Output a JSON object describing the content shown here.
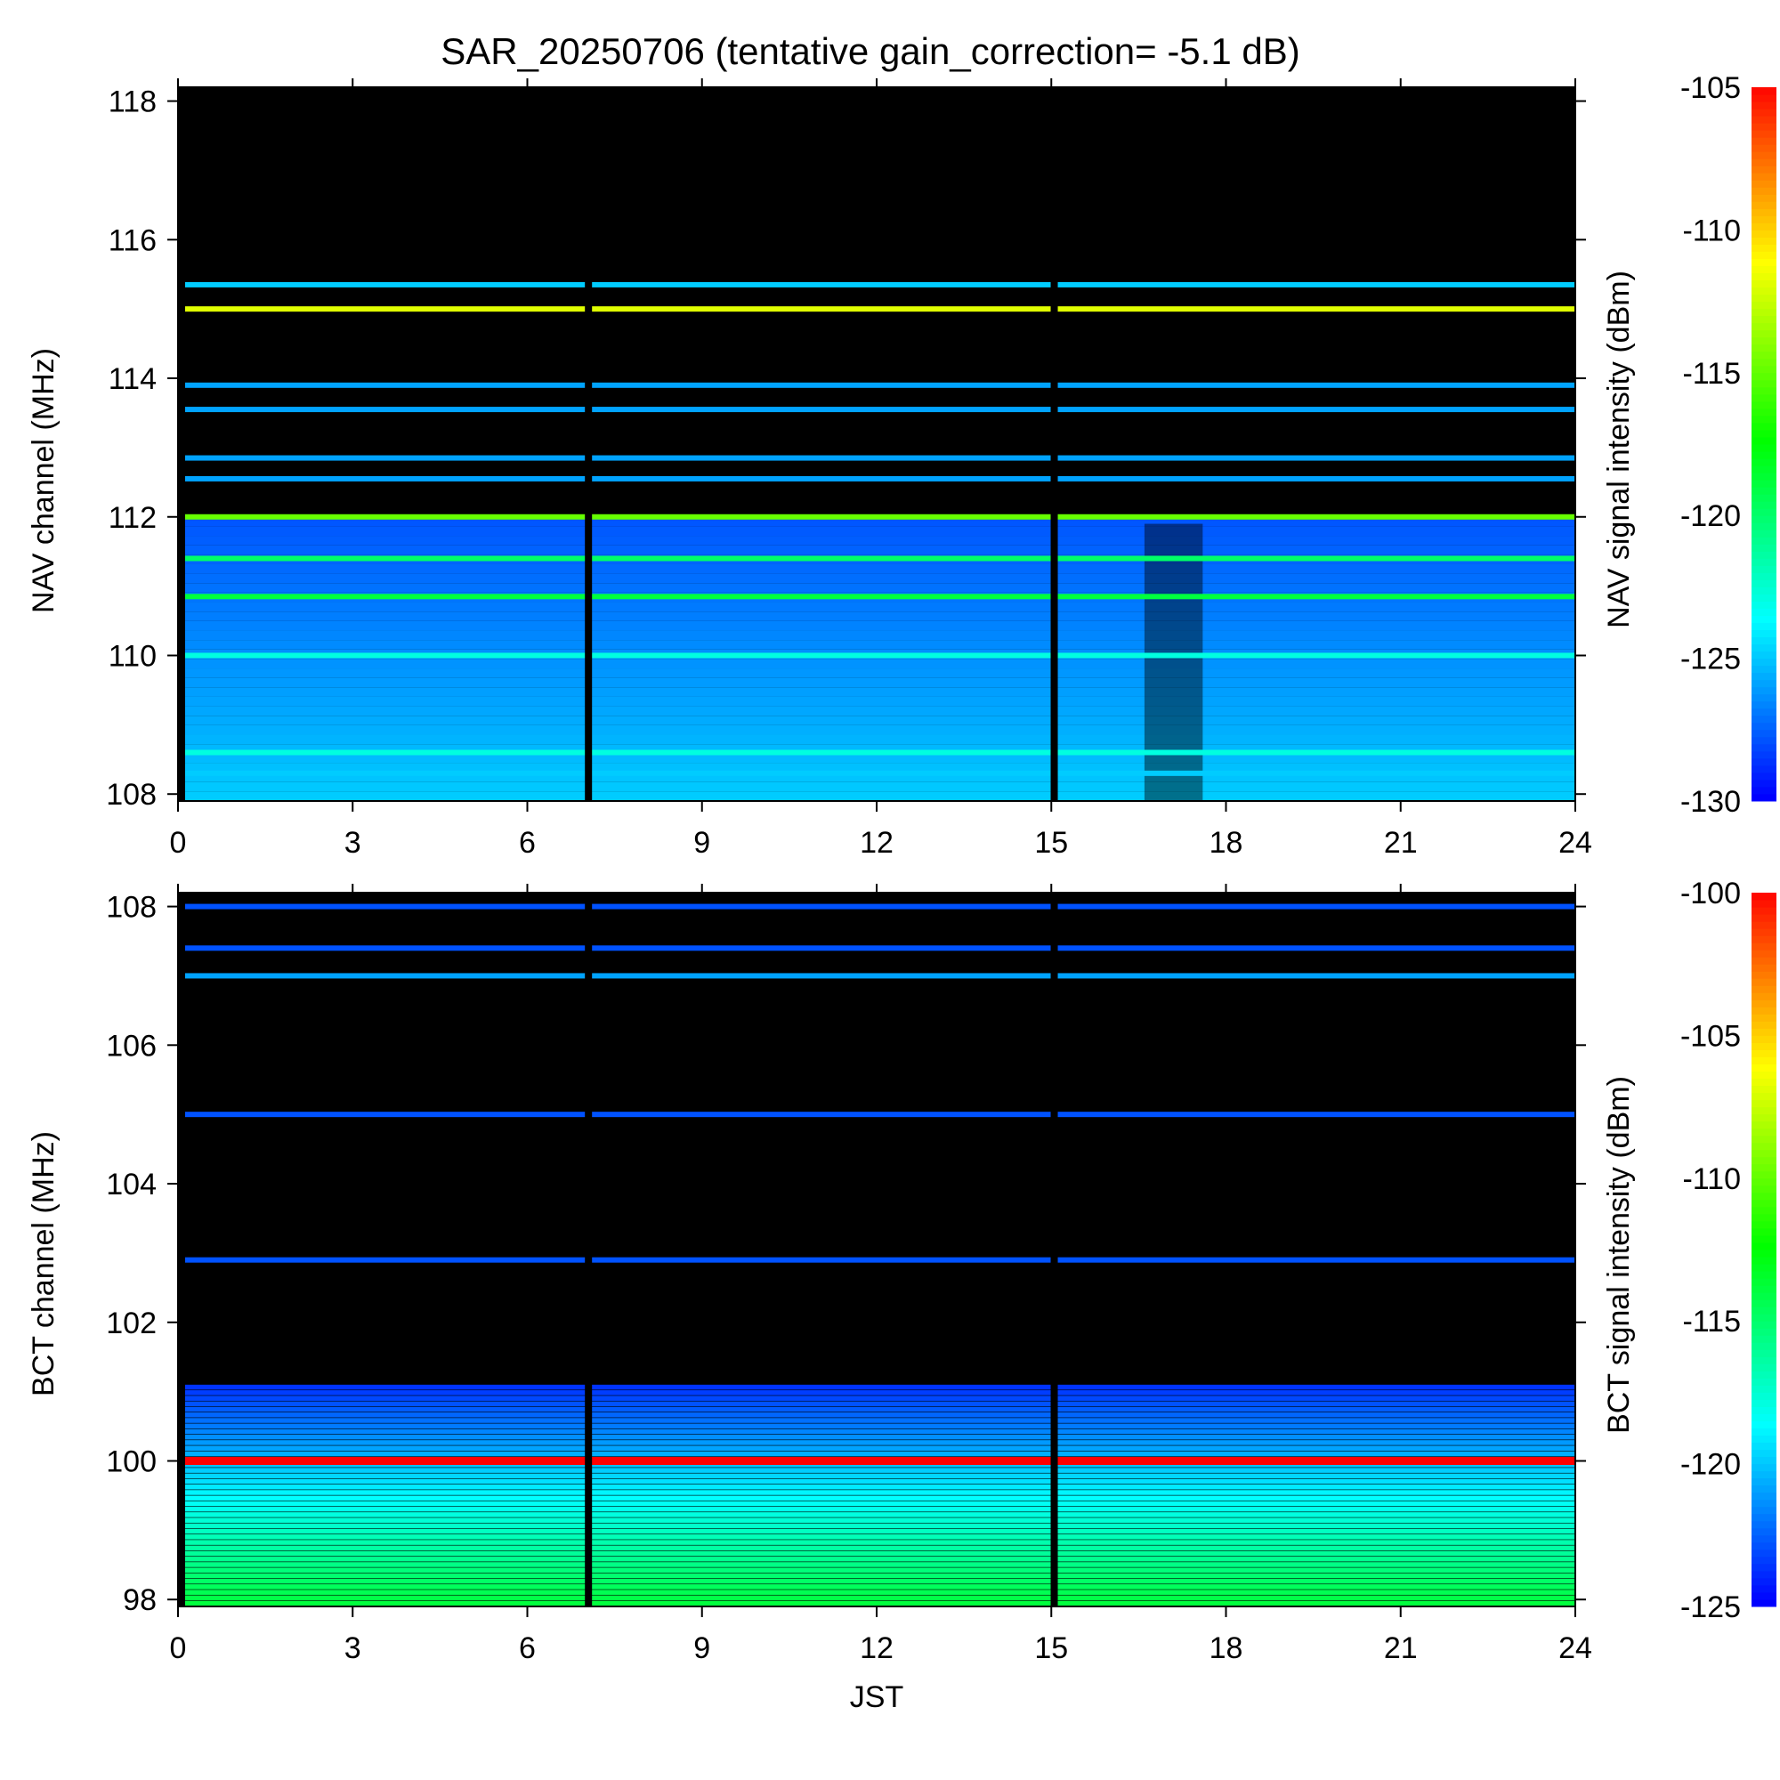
{
  "title": "SAR_20250706 (tentative gain_correction= -5.1 dB)",
  "chart_data": [
    {
      "type": "heatmap",
      "panel": "top",
      "ylabel": "NAV channel (MHz)",
      "colorbar_label": "NAV signal intensity (dBm)",
      "x_ticks": [
        "0",
        "3",
        "6",
        "9",
        "12",
        "15",
        "18",
        "21",
        "24"
      ],
      "y_ticks": [
        "108",
        "110",
        "112",
        "114",
        "116",
        "118"
      ],
      "colorbar_ticks": [
        "-130",
        "-125",
        "-120",
        "-115",
        "-110",
        "-105"
      ],
      "xlim": [
        0,
        24
      ],
      "ylim": [
        107.9,
        118.2
      ],
      "clim": [
        -130,
        -105
      ],
      "colormap": [
        "#0000ff",
        "#00ffff",
        "#00ff00",
        "#ffff00",
        "#ff0000"
      ],
      "data_gaps_jst": [
        7.05,
        15.05
      ],
      "interference_block_jst": [
        16.6,
        17.6
      ],
      "strong_channels": [
        {
          "freq": 115.0,
          "level": -112
        },
        {
          "freq": 112.0,
          "level": -115
        },
        {
          "freq": 111.4,
          "level": -120
        },
        {
          "freq": 110.85,
          "level": -119
        },
        {
          "freq": 110.0,
          "level": -123
        },
        {
          "freq": 108.6,
          "level": -123
        },
        {
          "freq": 108.3,
          "level": -125
        },
        {
          "freq": 115.35,
          "level": -125
        },
        {
          "freq": 113.9,
          "level": -126
        },
        {
          "freq": 113.55,
          "level": -126
        },
        {
          "freq": 112.85,
          "level": -126
        },
        {
          "freq": 112.55,
          "level": -126
        }
      ]
    },
    {
      "type": "heatmap",
      "panel": "bottom",
      "xlabel": "JST",
      "ylabel": "BCT channel (MHz)",
      "colorbar_label": "BCT signal intensity (dBm)",
      "x_ticks": [
        "0",
        "3",
        "6",
        "9",
        "12",
        "15",
        "18",
        "21",
        "24"
      ],
      "y_ticks": [
        "98",
        "100",
        "102",
        "104",
        "106",
        "108"
      ],
      "colorbar_ticks": [
        "-125",
        "-120",
        "-115",
        "-110",
        "-105",
        "-100"
      ],
      "xlim": [
        0,
        24
      ],
      "ylim": [
        97.9,
        108.2
      ],
      "clim": [
        -125,
        -100
      ],
      "colormap": [
        "#0000ff",
        "#00ffff",
        "#00ff00",
        "#ffff00",
        "#ff0000"
      ],
      "data_gaps_jst": [
        7.05,
        15.05
      ],
      "strong_channels": [
        {
          "freq": 100.0,
          "level": -100
        },
        {
          "freq": 105.0,
          "level": -123
        },
        {
          "freq": 102.9,
          "level": -123
        },
        {
          "freq": 107.0,
          "level": -121
        },
        {
          "freq": 107.4,
          "level": -123
        },
        {
          "freq": 108.0,
          "level": -123
        }
      ],
      "gradient_band": {
        "from_freq": 97.9,
        "to_freq": 101.1,
        "level_bottom": -114,
        "level_top": -124
      }
    }
  ]
}
